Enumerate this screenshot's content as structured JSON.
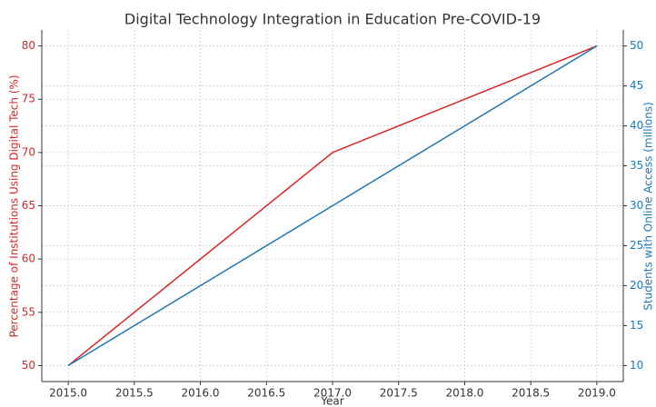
{
  "chart_data": {
    "type": "line",
    "title": "Digital Technology Integration in Education Pre-COVID-19",
    "x_label": "Year",
    "y_label": "Percentage of Institutions Using Digital Tech (%)",
    "y2_label": "Students with Online Access (millions)",
    "x": [
      2015,
      2017,
      2019
    ],
    "series": [
      {
        "name": "Percentage of Institutions Using Digital Tech (%)",
        "color": "#d62728",
        "values": [
          50,
          70,
          80
        ]
      },
      {
        "name": "Students with Online Access (millions)",
        "color": "#1f77b4",
        "values": [
          10,
          30,
          50
        ],
        "axis": "y2"
      }
    ],
    "xlim": [
      2014.8,
      2019.2
    ],
    "xticks": [
      {
        "value": 2015,
        "label": "2015.0"
      },
      {
        "value": 2015.5,
        "label": "2015.5"
      },
      {
        "value": 2016,
        "label": "2016.0"
      },
      {
        "value": 2016.5,
        "label": "2016.5"
      },
      {
        "value": 2017,
        "label": "2017.0"
      },
      {
        "value": 2017.5,
        "label": "2017.5"
      },
      {
        "value": 2018,
        "label": "2018.0"
      },
      {
        "value": 2018.5,
        "label": "2018.5"
      },
      {
        "value": 2019,
        "label": "2019.0"
      }
    ],
    "ylim": [
      48.5,
      81.5
    ],
    "yticks": [
      50,
      55,
      60,
      65,
      70,
      75,
      80
    ],
    "y2lim": [
      8,
      52
    ],
    "y2ticks": [
      10,
      15,
      20,
      25,
      30,
      35,
      40,
      45,
      50
    ],
    "grid": true
  }
}
